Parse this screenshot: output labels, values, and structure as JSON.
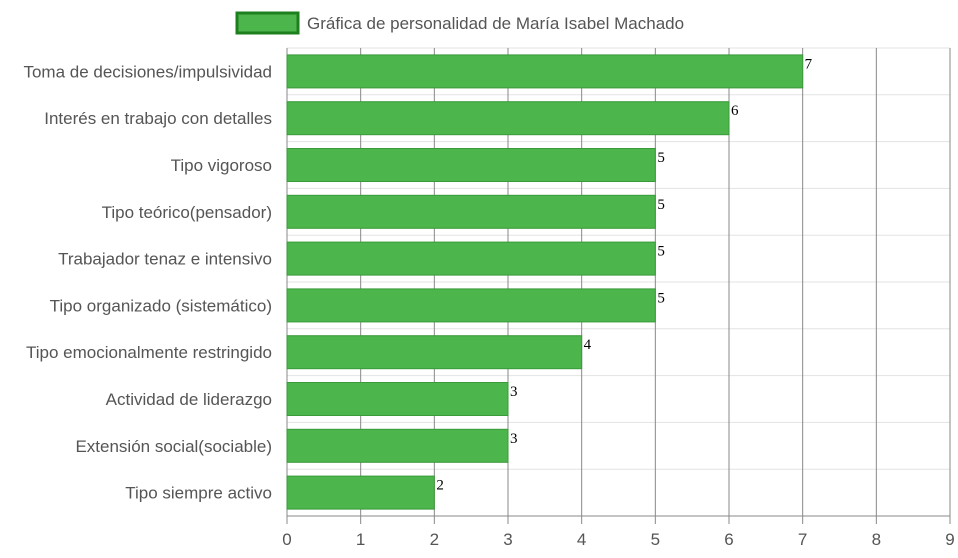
{
  "chart_data": {
    "type": "bar",
    "orientation": "horizontal",
    "categories": [
      "Toma de decisiones/impulsividad",
      "Interés en trabajo con detalles",
      "Tipo vigoroso",
      "Tipo teórico(pensador)",
      "Trabajador tenaz e intensivo",
      "Tipo organizado (sistemático)",
      "Tipo emocionalmente restringido",
      "Actividad de liderazgo",
      "Extensión social(sociable)",
      "Tipo siempre activo"
    ],
    "series": [
      {
        "name": "Gráfica de personalidad de María Isabel Machado",
        "values": [
          7,
          6,
          5,
          5,
          5,
          5,
          4,
          3,
          3,
          2
        ]
      }
    ],
    "xlim": [
      0,
      9
    ],
    "xticks": [
      "0",
      "1",
      "2",
      "3",
      "4",
      "5",
      "6",
      "7",
      "8",
      "9"
    ],
    "grid": true,
    "legend_position": "top",
    "colors": {
      "bar_fill": "#4cb54c",
      "bar_stroke": "#3a9a3a",
      "legend_fill": "#4cb54c",
      "legend_stroke": "#1e7f1e",
      "grid": "#888888",
      "row_grid": "#e3e3e3",
      "text": "#555555"
    }
  }
}
